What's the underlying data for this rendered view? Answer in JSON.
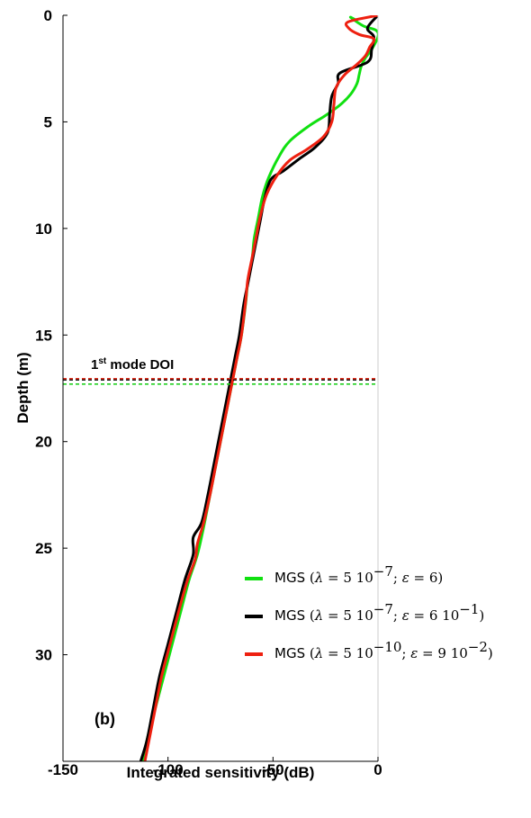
{
  "chart_data": {
    "type": "line",
    "orientation": "depth-profile",
    "xlabel": "Integrated sensitivity (dB)",
    "ylabel": "Depth (m)",
    "xlim": [
      -150,
      0
    ],
    "ylim": [
      0,
      35
    ],
    "y_inverted": true,
    "x_ticks": [
      "-150",
      "-100",
      "-50",
      "0"
    ],
    "y_ticks": [
      "0",
      "5",
      "10",
      "15",
      "20",
      "25",
      "30"
    ],
    "grid": false,
    "legend_placement": "lower-right",
    "panel_label": "(b)",
    "annotation": {
      "text_main": "1",
      "text_sup": "st",
      "text_rest": " mode DOI",
      "depth": 17.1
    },
    "doi_lines": [
      {
        "series": 0,
        "depth": 17.3,
        "color": "#20d020"
      },
      {
        "series": 1,
        "depth": 17.1,
        "color": "#000000"
      },
      {
        "series": 2,
        "depth": 17.05,
        "color": "#e03020"
      }
    ],
    "series": [
      {
        "name": "MGS",
        "lambda_base": "5 10",
        "lambda_exp": "−7",
        "eps_base": "6",
        "eps_exp": "",
        "color": "#10e010",
        "points": [
          [
            -11,
            0.2
          ],
          [
            -13,
            0.1
          ],
          [
            -7,
            0.5
          ],
          [
            -1,
            0.7
          ],
          [
            0,
            1.0
          ],
          [
            -3,
            1.6
          ],
          [
            -6,
            2.0
          ],
          [
            -8,
            2.4
          ],
          [
            -9,
            2.8
          ],
          [
            -10,
            3.2
          ],
          [
            -13,
            3.7
          ],
          [
            -18,
            4.2
          ],
          [
            -25,
            4.7
          ],
          [
            -33,
            5.2
          ],
          [
            -42,
            5.9
          ],
          [
            -47,
            6.6
          ],
          [
            -52,
            7.6
          ],
          [
            -55,
            8.5
          ],
          [
            -57,
            9.5
          ],
          [
            -59,
            10.5
          ],
          [
            -60,
            11.5
          ],
          [
            -62,
            12.5
          ],
          [
            -63,
            13.5
          ],
          [
            -65,
            15
          ],
          [
            -67,
            16
          ],
          [
            -69,
            17
          ],
          [
            -71,
            18
          ],
          [
            -74,
            19.5
          ],
          [
            -77,
            21
          ],
          [
            -80,
            22.5
          ],
          [
            -83,
            24
          ],
          [
            -86,
            25.3
          ],
          [
            -90,
            26.5
          ],
          [
            -94,
            28
          ],
          [
            -98,
            29.5
          ],
          [
            -102,
            31
          ],
          [
            -106,
            32.5
          ],
          [
            -110,
            34
          ],
          [
            -112,
            35
          ]
        ]
      },
      {
        "name": "MGS",
        "lambda_base": "5 10",
        "lambda_exp": "−7",
        "eps_base": "6 10",
        "eps_exp": "−1",
        "color": "#000000",
        "points": [
          [
            0,
            0
          ],
          [
            -5,
            0.6
          ],
          [
            -2,
            1.0
          ],
          [
            -3,
            1.6
          ],
          [
            -5,
            2.2
          ],
          [
            -18,
            2.7
          ],
          [
            -19,
            3.2
          ],
          [
            -22,
            3.8
          ],
          [
            -23,
            4.6
          ],
          [
            -24,
            5.5
          ],
          [
            -30,
            6.2
          ],
          [
            -37,
            6.7
          ],
          [
            -45,
            7.3
          ],
          [
            -51,
            7.7
          ],
          [
            -54,
            8.6
          ],
          [
            -56,
            9.6
          ],
          [
            -58,
            10.6
          ],
          [
            -60,
            11.6
          ],
          [
            -62,
            12.6
          ],
          [
            -64,
            13.6
          ],
          [
            -66,
            15
          ],
          [
            -68,
            16
          ],
          [
            -70,
            17
          ],
          [
            -72,
            18
          ],
          [
            -75,
            19.5
          ],
          [
            -78,
            21
          ],
          [
            -81,
            22.5
          ],
          [
            -84,
            23.8
          ],
          [
            -88,
            24.5
          ],
          [
            -88,
            25.3
          ],
          [
            -92,
            26.5
          ],
          [
            -96,
            28
          ],
          [
            -100,
            29.5
          ],
          [
            -104,
            31
          ],
          [
            -107,
            32.5
          ],
          [
            -110,
            34
          ],
          [
            -113,
            35
          ]
        ]
      },
      {
        "name": "MGS",
        "lambda_base": "5 10",
        "lambda_exp": "−10",
        "eps_base": "9 10",
        "eps_exp": "−2",
        "color": "#ee2010",
        "points": [
          [
            0,
            0
          ],
          [
            -14,
            0.3
          ],
          [
            -14,
            0.6
          ],
          [
            -9,
            0.9
          ],
          [
            -2,
            1.1
          ],
          [
            -4,
            1.5
          ],
          [
            -6,
            1.9
          ],
          [
            -10,
            2.3
          ],
          [
            -16,
            2.8
          ],
          [
            -20,
            3.4
          ],
          [
            -21,
            4.2
          ],
          [
            -22,
            5.0
          ],
          [
            -26,
            5.7
          ],
          [
            -34,
            6.3
          ],
          [
            -42,
            6.8
          ],
          [
            -48,
            7.5
          ],
          [
            -53,
            8.4
          ],
          [
            -56,
            9.4
          ],
          [
            -58,
            10.4
          ],
          [
            -60,
            11.4
          ],
          [
            -62,
            12.4
          ],
          [
            -63,
            13.4
          ],
          [
            -65,
            15
          ],
          [
            -67,
            16
          ],
          [
            -69,
            17
          ],
          [
            -71,
            18
          ],
          [
            -74,
            19.5
          ],
          [
            -77,
            21
          ],
          [
            -80,
            22.5
          ],
          [
            -83,
            23.8
          ],
          [
            -86,
            24.8
          ],
          [
            -87,
            25.5
          ],
          [
            -91,
            26.6
          ],
          [
            -95,
            28
          ],
          [
            -99,
            29.5
          ],
          [
            -103,
            31
          ],
          [
            -106,
            32.5
          ],
          [
            -109,
            34
          ],
          [
            -111,
            35
          ]
        ]
      }
    ]
  }
}
